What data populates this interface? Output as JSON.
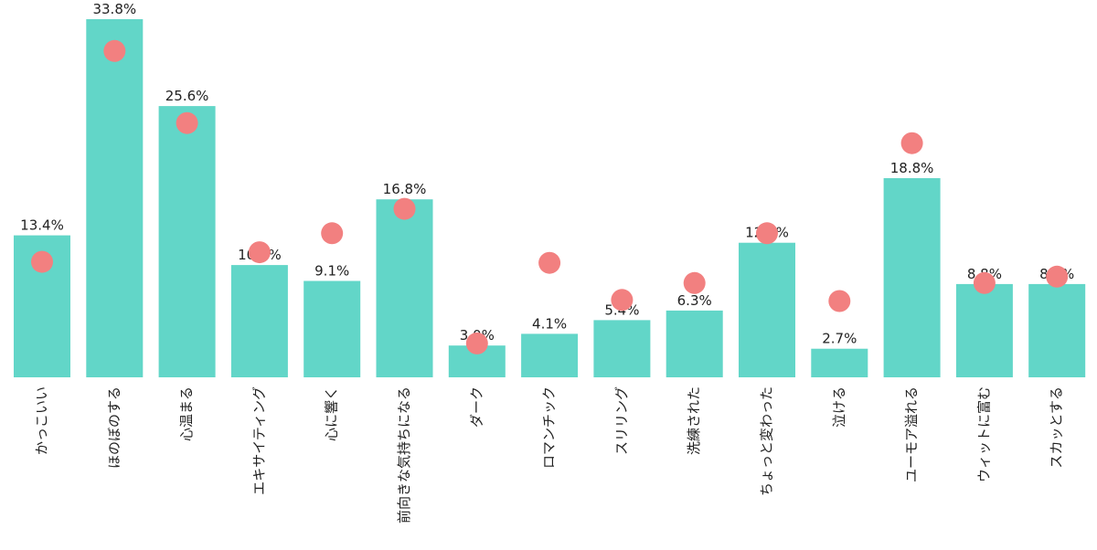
{
  "chart_data": {
    "type": "bar",
    "title": "",
    "xlabel": "",
    "ylabel": "",
    "ylim": [
      0,
      33.8
    ],
    "categories": [
      "かっこいい",
      "ほのぼのする",
      "心温まる",
      "エキサイティング",
      "心に響く",
      "前向きな気持ちになる",
      "ダーク",
      "ロマンチック",
      "スリリング",
      "洗練された",
      "ちょっと変わった",
      "泣ける",
      "ユーモア溢れる",
      "ウィットに富む",
      "スカッとする"
    ],
    "series": [
      {
        "name": "bars",
        "values": [
          13.4,
          33.8,
          25.6,
          10.6,
          9.1,
          16.8,
          3.0,
          4.1,
          5.4,
          6.3,
          12.7,
          2.7,
          18.8,
          8.8,
          8.8
        ]
      },
      {
        "name": "dots",
        "values": [
          10.9,
          30.8,
          24.0,
          11.8,
          13.6,
          15.9,
          3.2,
          10.8,
          7.3,
          8.9,
          13.6,
          7.2,
          22.1,
          8.9,
          9.5
        ]
      }
    ],
    "value_labels": [
      "13.4%",
      "33.8%",
      "25.6%",
      "10.6%",
      "9.1%",
      "16.8%",
      "3.0%",
      "4.1%",
      "5.4%",
      "6.3%",
      "12.7%",
      "2.7%",
      "18.8%",
      "8.8%",
      "8.8%"
    ],
    "colors": {
      "bar": "#62d6c8",
      "dot": "#f28080"
    }
  }
}
